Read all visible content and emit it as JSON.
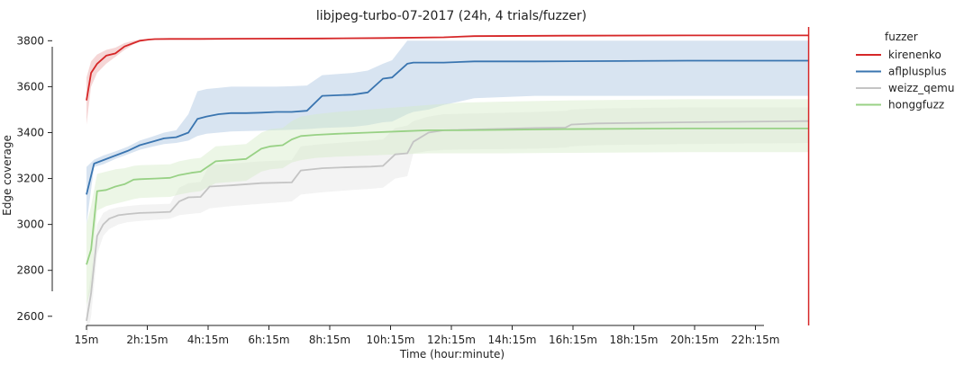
{
  "chart_data": {
    "type": "line",
    "title": "libjpeg-turbo-07-2017 (24h, 4 trials/fuzzer)",
    "xlabel": "Time (hour:minute)",
    "ylabel": "Edge coverage",
    "x_unit": "hours",
    "xlim": [
      0.25,
      24.25
    ],
    "ylim": [
      2560,
      3860
    ],
    "x_ticks": [
      {
        "value": 0.25,
        "label": "15m"
      },
      {
        "value": 2.25,
        "label": "2h:15m"
      },
      {
        "value": 4.25,
        "label": "4h:15m"
      },
      {
        "value": 6.25,
        "label": "6h:15m"
      },
      {
        "value": 8.25,
        "label": "8h:15m"
      },
      {
        "value": 10.25,
        "label": "10h:15m"
      },
      {
        "value": 12.25,
        "label": "12h:15m"
      },
      {
        "value": 14.25,
        "label": "14h:15m"
      },
      {
        "value": 16.25,
        "label": "16h:15m"
      },
      {
        "value": 18.25,
        "label": "18h:15m"
      },
      {
        "value": 20.25,
        "label": "20h:15m"
      },
      {
        "value": 22.25,
        "label": "22h:15m"
      }
    ],
    "y_ticks": [
      2600,
      2800,
      3000,
      3200,
      3400,
      3600,
      3800
    ],
    "vline": {
      "x": 24,
      "color": "#d62728"
    },
    "grid": false,
    "legend": {
      "title": "fuzzer",
      "position": "top-right outside"
    },
    "series": [
      {
        "name": "kirenenko",
        "color": "#d62728",
        "band_color": "#e8a3a3",
        "x": [
          0.25,
          0.4,
          0.6,
          0.9,
          1.2,
          1.5,
          1.8,
          2.0,
          2.3,
          2.5,
          3,
          4,
          6,
          8,
          10,
          12,
          13,
          16,
          20,
          24
        ],
        "y": [
          3540,
          3660,
          3700,
          3735,
          3745,
          3775,
          3790,
          3800,
          3805,
          3807,
          3808,
          3808,
          3809,
          3810,
          3812,
          3815,
          3820,
          3822,
          3823,
          3823
        ],
        "lower": [
          3435,
          3600,
          3660,
          3700,
          3730,
          3760,
          3785,
          3795,
          3803,
          3805,
          3806,
          3806,
          3807,
          3808,
          3810,
          3813,
          3818,
          3820,
          3821,
          3821
        ],
        "upper": [
          3640,
          3710,
          3740,
          3760,
          3770,
          3790,
          3800,
          3805,
          3808,
          3810,
          3811,
          3811,
          3812,
          3813,
          3815,
          3818,
          3823,
          3825,
          3826,
          3826
        ]
      },
      {
        "name": "aflplusplus",
        "color": "#3a75b0",
        "band_color": "#a9c4e0",
        "x": [
          0.25,
          0.5,
          0.8,
          1.2,
          1.6,
          2.0,
          2.4,
          2.8,
          3.2,
          3.6,
          3.9,
          4.2,
          4.6,
          5.0,
          5.5,
          6.0,
          6.5,
          7.0,
          7.5,
          8.0,
          9.0,
          9.5,
          10.0,
          10.3,
          10.8,
          11.0,
          11.5,
          12.0,
          13.0,
          15.0,
          20.0,
          24.0
        ],
        "y": [
          3130,
          3265,
          3280,
          3300,
          3320,
          3345,
          3360,
          3375,
          3380,
          3400,
          3460,
          3470,
          3480,
          3485,
          3485,
          3487,
          3490,
          3490,
          3495,
          3560,
          3565,
          3575,
          3635,
          3640,
          3700,
          3705,
          3705,
          3705,
          3710,
          3710,
          3713,
          3713
        ],
        "lower": [
          3000,
          3250,
          3262,
          3285,
          3305,
          3325,
          3338,
          3350,
          3355,
          3365,
          3385,
          3395,
          3400,
          3405,
          3407,
          3408,
          3410,
          3412,
          3415,
          3420,
          3425,
          3432,
          3445,
          3448,
          3480,
          3490,
          3500,
          3520,
          3550,
          3560,
          3560,
          3560
        ],
        "upper": [
          3250,
          3282,
          3300,
          3318,
          3338,
          3365,
          3382,
          3400,
          3410,
          3480,
          3580,
          3590,
          3595,
          3600,
          3600,
          3600,
          3600,
          3602,
          3605,
          3650,
          3660,
          3670,
          3700,
          3715,
          3800,
          3800,
          3800,
          3800,
          3800,
          3800,
          3800,
          3800
        ]
      },
      {
        "name": "weizz_qemu",
        "color": "#c4c4c4",
        "band_color": "#e4e4e4",
        "x": [
          0.25,
          0.4,
          0.6,
          0.8,
          1.0,
          1.3,
          1.6,
          2.0,
          2.5,
          3.0,
          3.3,
          3.6,
          4.0,
          4.3,
          5.0,
          6.0,
          7.0,
          7.3,
          8.0,
          9.0,
          9.6,
          10.0,
          10.4,
          10.8,
          11.0,
          11.5,
          12.0,
          15.0,
          16.0,
          16.2,
          17.0,
          20.0,
          24.0
        ],
        "y": [
          2580,
          2700,
          2950,
          3000,
          3025,
          3040,
          3045,
          3050,
          3052,
          3055,
          3100,
          3118,
          3120,
          3165,
          3170,
          3180,
          3183,
          3235,
          3245,
          3250,
          3252,
          3255,
          3305,
          3310,
          3360,
          3400,
          3410,
          3420,
          3422,
          3435,
          3440,
          3445,
          3450
        ],
        "lower": [
          2500,
          2600,
          2870,
          2950,
          2980,
          3000,
          3010,
          3015,
          3020,
          3025,
          3040,
          3045,
          3050,
          3070,
          3080,
          3090,
          3100,
          3130,
          3140,
          3150,
          3155,
          3160,
          3200,
          3210,
          3310,
          3320,
          3325,
          3330,
          3335,
          3340,
          3345,
          3350,
          3355
        ],
        "upper": [
          2650,
          2780,
          3000,
          3050,
          3065,
          3075,
          3080,
          3085,
          3088,
          3090,
          3160,
          3180,
          3185,
          3260,
          3265,
          3275,
          3280,
          3340,
          3350,
          3360,
          3365,
          3370,
          3420,
          3430,
          3450,
          3470,
          3480,
          3490,
          3495,
          3500,
          3505,
          3510,
          3510
        ]
      },
      {
        "name": "honggfuzz",
        "color": "#98d185",
        "band_color": "#d5ebc8",
        "x": [
          0.25,
          0.4,
          0.6,
          0.9,
          1.2,
          1.5,
          1.8,
          2.0,
          2.5,
          3.0,
          3.3,
          3.7,
          4.0,
          4.5,
          5.0,
          5.5,
          6.0,
          6.3,
          6.7,
          7.0,
          7.3,
          7.8,
          8.5,
          9.5,
          10.5,
          11.5,
          12.5,
          14.0,
          16.0,
          20.0,
          24.0
        ],
        "y": [
          2825,
          2890,
          3145,
          3150,
          3165,
          3175,
          3195,
          3197,
          3200,
          3203,
          3215,
          3225,
          3230,
          3275,
          3280,
          3285,
          3330,
          3340,
          3345,
          3370,
          3385,
          3390,
          3395,
          3400,
          3405,
          3410,
          3410,
          3412,
          3415,
          3418,
          3418
        ],
        "lower": [
          2650,
          2720,
          3060,
          3080,
          3090,
          3100,
          3110,
          3115,
          3118,
          3120,
          3130,
          3140,
          3145,
          3180,
          3185,
          3190,
          3230,
          3240,
          3245,
          3270,
          3280,
          3290,
          3295,
          3300,
          3305,
          3310,
          3310,
          3310,
          3312,
          3315,
          3315
        ],
        "upper": [
          3000,
          3080,
          3220,
          3230,
          3240,
          3245,
          3255,
          3258,
          3260,
          3262,
          3275,
          3285,
          3290,
          3340,
          3345,
          3350,
          3400,
          3415,
          3420,
          3450,
          3470,
          3480,
          3490,
          3500,
          3510,
          3520,
          3530,
          3535,
          3540,
          3545,
          3545
        ]
      }
    ]
  }
}
